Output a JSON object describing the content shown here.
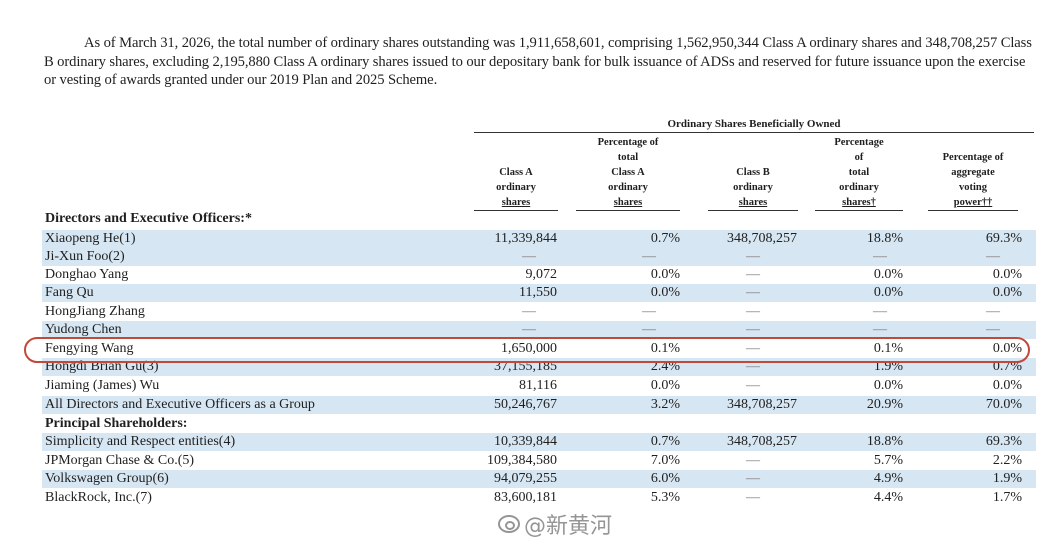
{
  "paragraph": "As of March 31, 2026, the total number of ordinary shares outstanding was 1,911,658,601, comprising 1,562,950,344 Class A ordinary shares and 348,708,257 Class B ordinary shares, excluding 2,195,880 Class A ordinary shares issued to our depositary bank for bulk issuance of ADSs and reserved for future issuance upon the exercise or vesting of awards granted under our 2019 Plan and 2025 Scheme.",
  "table": {
    "group_header": "Ordinary Shares Beneficially Owned",
    "columns": [
      {
        "lines": [
          "Class A",
          "ordinary",
          "shares"
        ]
      },
      {
        "lines": [
          "Percentage of",
          "total",
          "Class A",
          "ordinary",
          "shares"
        ]
      },
      {
        "lines": [
          "Class B",
          "ordinary",
          "shares"
        ]
      },
      {
        "lines": [
          "Percentage",
          "of",
          "total",
          "ordinary",
          "shares†"
        ]
      },
      {
        "lines": [
          "Percentage of",
          "aggregate",
          "voting",
          "power††"
        ]
      }
    ],
    "sections": {
      "directors": "Directors and Executive Officers:*",
      "principal": "Principal Shareholders:"
    },
    "rows": [
      {
        "name": "Xiaopeng He(1)",
        "values": [
          "11,339,844",
          "0.7%",
          "348,708,257",
          "18.8%",
          "69.3%"
        ]
      },
      {
        "name": "Ji-Xun Foo(2)",
        "values": [
          "—",
          "—",
          "—",
          "—",
          "—"
        ]
      },
      {
        "name": "Donghao Yang",
        "values": [
          "9,072",
          "0.0%",
          "—",
          "0.0%",
          "0.0%"
        ]
      },
      {
        "name": "Fang Qu",
        "values": [
          "11,550",
          "0.0%",
          "—",
          "0.0%",
          "0.0%"
        ]
      },
      {
        "name": "HongJiang Zhang",
        "values": [
          "—",
          "—",
          "—",
          "—",
          "—"
        ]
      },
      {
        "name": "Yudong Chen",
        "values": [
          "—",
          "—",
          "—",
          "—",
          "—"
        ]
      },
      {
        "name": "Fengying Wang",
        "values": [
          "1,650,000",
          "0.1%",
          "—",
          "0.1%",
          "0.0%"
        ]
      },
      {
        "name": "Hongdi Brian Gu(3)",
        "values": [
          "37,155,185",
          "2.4%",
          "—",
          "1.9%",
          "0.7%"
        ]
      },
      {
        "name": "Jiaming (James) Wu",
        "values": [
          "81,116",
          "0.0%",
          "—",
          "0.0%",
          "0.0%"
        ]
      },
      {
        "name": "All Directors and Executive Officers as a Group",
        "values": [
          "50,246,767",
          "3.2%",
          "348,708,257",
          "20.9%",
          "70.0%"
        ]
      },
      {
        "name": "Simplicity and Respect entities(4)",
        "values": [
          "10,339,844",
          "0.7%",
          "348,708,257",
          "18.8%",
          "69.3%"
        ]
      },
      {
        "name": "JPMorgan Chase & Co.(5)",
        "values": [
          "109,384,580",
          "7.0%",
          "—",
          "5.7%",
          "2.2%"
        ]
      },
      {
        "name": "Volkswagen Group(6)",
        "values": [
          "94,079,255",
          "6.0%",
          "—",
          "4.9%",
          "1.9%"
        ]
      },
      {
        "name": "BlackRock, Inc.(7)",
        "values": [
          "83,600,181",
          "5.3%",
          "—",
          "4.4%",
          "1.7%"
        ]
      }
    ]
  },
  "watermark": "@新黄河",
  "colors": {
    "row_shade": "#d6e6f2",
    "highlight": "#c2493a"
  }
}
